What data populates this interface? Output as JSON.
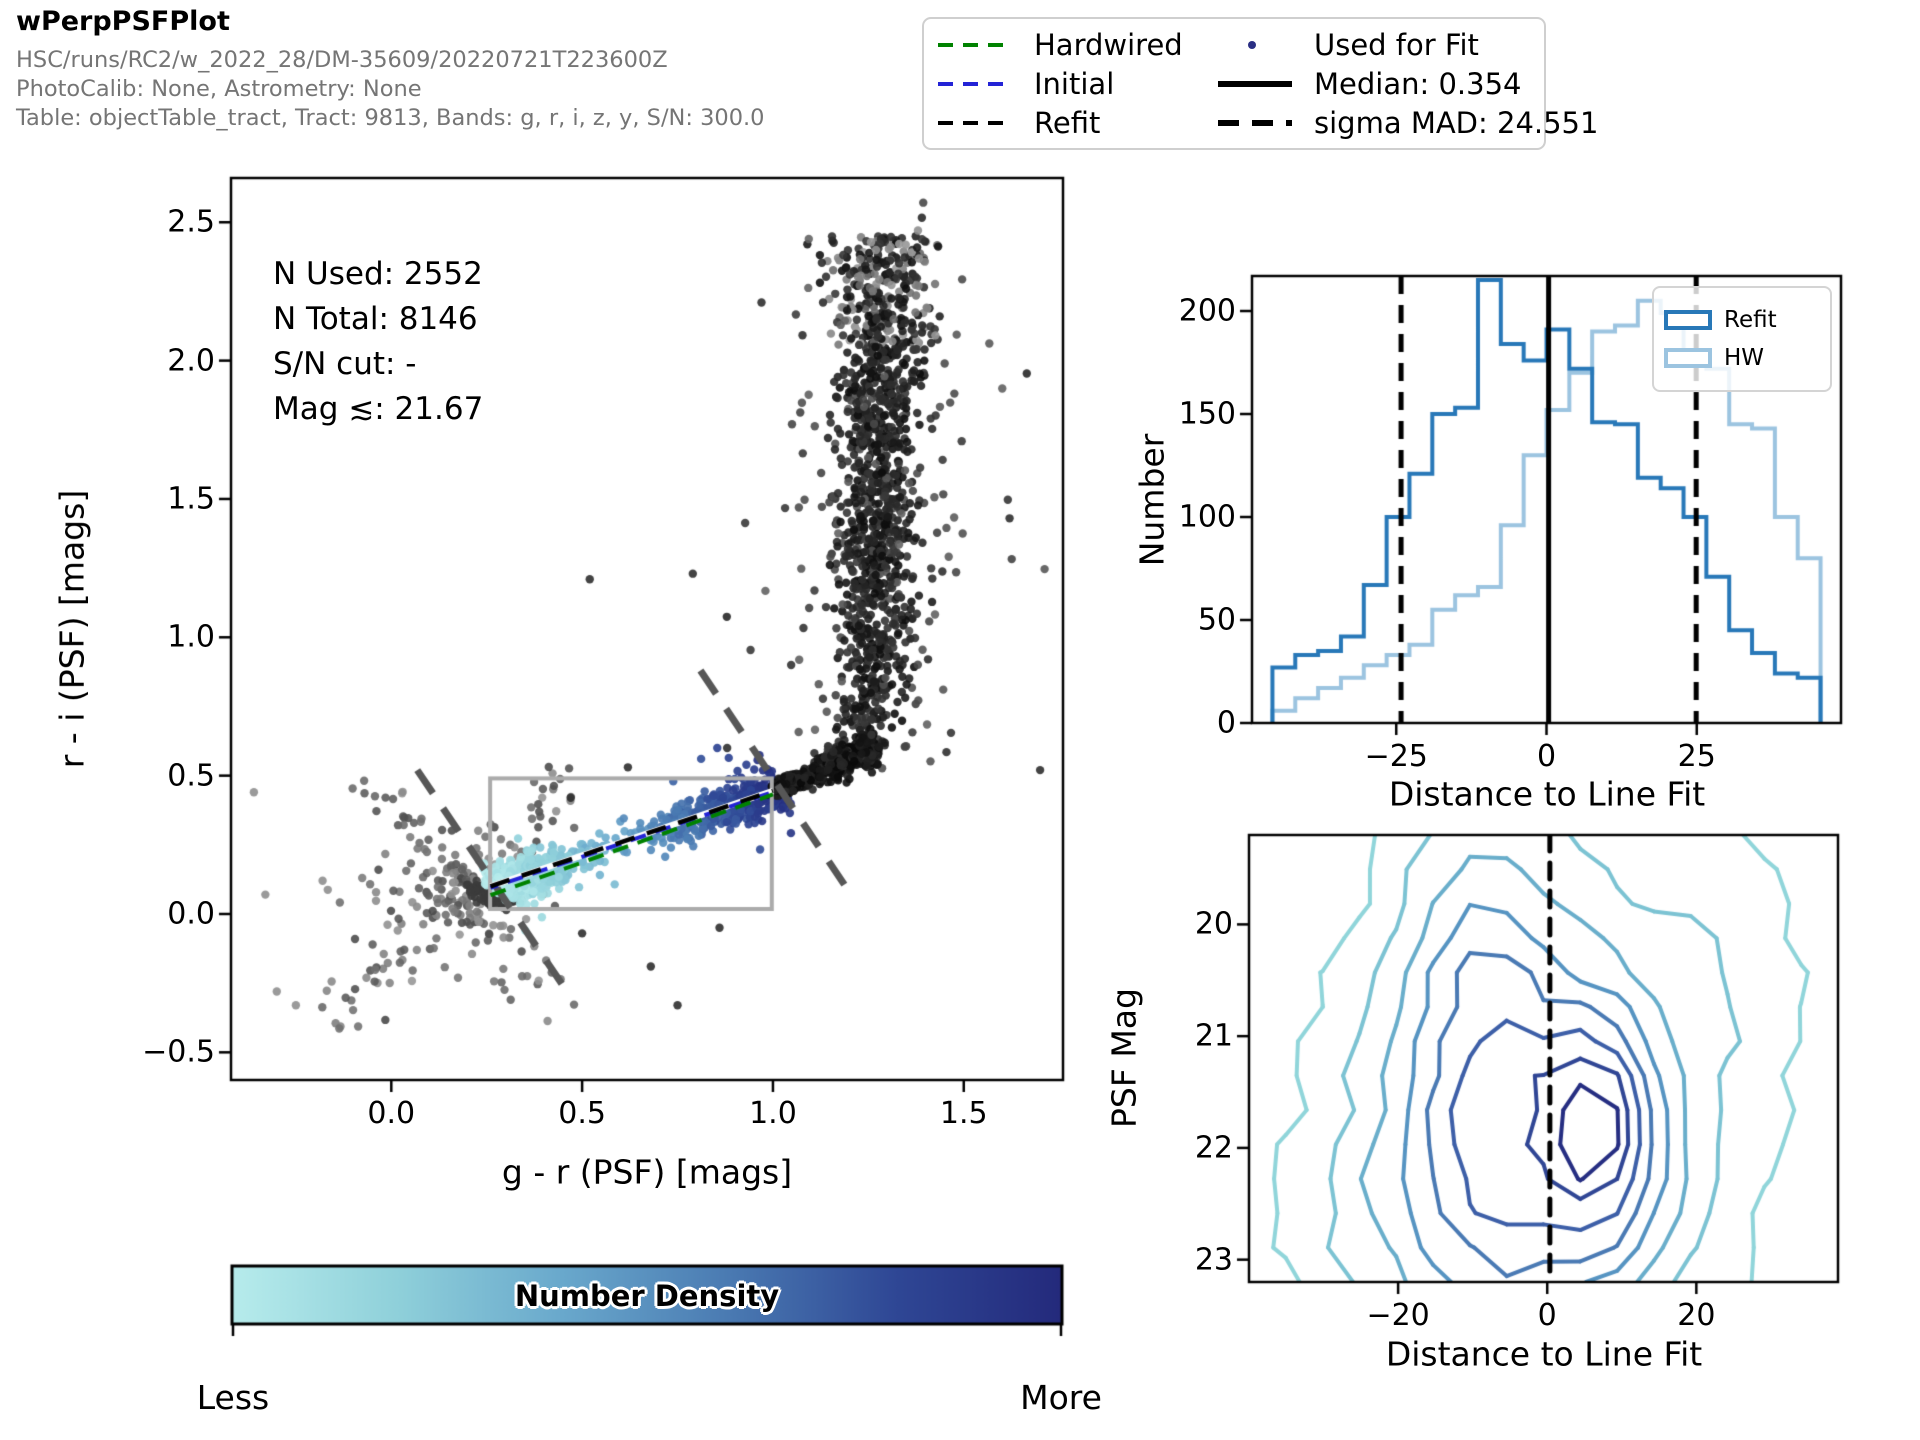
{
  "header": {
    "title": "wPerpPSFPlot",
    "line1": "HSC/runs/RC2/w_2022_28/DM-35609/20220721T223600Z",
    "line2": "PhotoCalib: None, Astrometry: None",
    "line3": "Table: objectTable_tract, Tract: 9813, Bands: g, r, i, z, y, S/N: 300.0"
  },
  "fit_legend": {
    "items": [
      {
        "label": "Hardwired",
        "swatch": "dash-green",
        "color": "#008200"
      },
      {
        "label": "Initial",
        "swatch": "dash-blue",
        "color": "#2323d6"
      },
      {
        "label": "Refit",
        "swatch": "dash-black",
        "color": "#000000"
      },
      {
        "label": "Used for Fit",
        "swatch": "dot-navy",
        "color": "#2a2f84"
      },
      {
        "label": "Median: 0.354",
        "swatch": "solid-black",
        "color": "#000000"
      },
      {
        "label": "sigma MAD: 24.551",
        "swatch": "thick-dash",
        "color": "#000000"
      }
    ]
  },
  "colorbar": {
    "label": "Number Density",
    "less_label": "Less",
    "more_label": "More",
    "stops": [
      "#b7ecec",
      "#8fd0da",
      "#69a8cc",
      "#4a7ab2",
      "#2f4795",
      "#242a7c"
    ]
  },
  "chart_data": [
    {
      "type": "scatter",
      "name": "color-color-diagram",
      "xlabel": "g - r (PSF) [mags]",
      "ylabel": "r - i (PSF) [mags]",
      "xlim": [
        -0.42,
        1.76
      ],
      "ylim": [
        -0.6,
        2.66
      ],
      "xticks": [
        0.0,
        0.5,
        1.0,
        1.5
      ],
      "xtick_labels": [
        "0.0",
        "0.5",
        "1.0",
        "1.5"
      ],
      "yticks": [
        -0.5,
        0.0,
        0.5,
        1.0,
        1.5,
        2.0,
        2.5
      ],
      "ytick_labels": [
        "−0.5",
        "0.0",
        "0.5",
        "1.0",
        "1.5",
        "2.0",
        "2.5"
      ],
      "annotations": [
        "N Used: 2552",
        "N Total: 8146",
        "S/N cut: -",
        "Mag ≲: 21.67"
      ],
      "stats": {
        "n_used": 2552,
        "n_total": 8146,
        "sn_cut": "-",
        "mag_limit": 21.67
      },
      "fit_box": {
        "x0": 0.259,
        "x1": 0.997,
        "y0": 0.018,
        "y1": 0.49
      },
      "fit_lines": {
        "white_under": {
          "color": "#ffffff",
          "p0": [
            0.26,
            0.1
          ],
          "p1": [
            1.0,
            0.445
          ]
        },
        "initial": {
          "color": "#2323d6",
          "p0": [
            0.26,
            0.094
          ],
          "p1": [
            1.0,
            0.441
          ]
        },
        "refit": {
          "color": "#000000",
          "p0": [
            0.26,
            0.1
          ],
          "p1": [
            1.0,
            0.445
          ]
        },
        "hardwired": {
          "color": "#008200",
          "p0": [
            0.26,
            0.068
          ],
          "p1": [
            1.0,
            0.432
          ]
        }
      },
      "perp_lines": [
        {
          "p0": [
            0.068,
            0.52
          ],
          "p1": [
            0.47,
            -0.3
          ]
        },
        {
          "p0": [
            0.81,
            0.88
          ],
          "p1": [
            1.19,
            0.1
          ]
        }
      ],
      "point_groups": [
        {
          "name": "background-cloud",
          "type": "cross",
          "n": 250,
          "center": [
            0.17,
            0.07
          ],
          "arm1": {
            "dx": 0.3,
            "dy": 0.44,
            "sx": 0.05,
            "sy": 0.04
          },
          "arm2": {
            "dx": 0.24,
            "dy": -0.42,
            "sx": 0.05,
            "sy": 0.05
          },
          "blob": [
            0.13,
            0.12
          ],
          "gray_range": [
            70,
            150
          ]
        },
        {
          "name": "knee-clump",
          "type": "gauss",
          "n": 150,
          "center": [
            0.27,
            0.078
          ],
          "sigma": [
            0.032,
            0.026
          ],
          "color": "#3c3c3c"
        },
        {
          "name": "fit-locus",
          "type": "locus",
          "n": 980,
          "p0": [
            0.26,
            0.095
          ],
          "p1": [
            1.0,
            0.445
          ],
          "perp_sigma": 0.03,
          "tail_frac": 0.1,
          "tail_sigma": 0.085
        },
        {
          "name": "upper-branch",
          "type": "branch",
          "n": 1800,
          "x_center": 1.27,
          "y_range": [
            0.5,
            2.45
          ],
          "merge_p0": [
            1.0,
            0.45
          ],
          "merge_p1": [
            1.27,
            0.6
          ]
        },
        {
          "name": "outliers-dark",
          "type": "fixed",
          "color": "#2f2f2f",
          "points": [
            [
              0.5,
              -0.07
            ],
            [
              0.68,
              -0.19
            ],
            [
              0.86,
              -0.05
            ],
            [
              0.75,
              -0.33
            ],
            [
              0.62,
              0.53
            ],
            [
              0.88,
              0.6
            ],
            [
              0.47,
              0.42
            ],
            [
              0.79,
              1.23
            ],
            [
              0.52,
              1.21
            ],
            [
              1.62,
              1.43
            ],
            [
              1.7,
              0.52
            ],
            [
              0.97,
              2.21
            ]
          ]
        },
        {
          "name": "outliers-gray",
          "type": "fixed",
          "color": "#8f8f8f",
          "points": [
            [
              -0.36,
              0.44
            ],
            [
              -0.3,
              -0.28
            ],
            [
              -0.25,
              -0.33
            ],
            [
              1.38,
              2.47
            ],
            [
              1.27,
              2.4
            ],
            [
              -0.18,
              0.12
            ],
            [
              -0.33,
              0.07
            ]
          ]
        }
      ]
    },
    {
      "type": "histogram-step",
      "name": "distance-histogram",
      "xlabel": "Distance to Line Fit",
      "ylabel": "Number",
      "xlim": [
        -49,
        49
      ],
      "ylim": [
        0,
        217
      ],
      "xticks": [
        -25,
        0,
        25
      ],
      "xtick_labels": [
        "−25",
        "0",
        "25"
      ],
      "yticks": [
        0,
        50,
        100,
        150,
        200
      ],
      "ytick_labels": [
        "0",
        "50",
        "100",
        "150",
        "200"
      ],
      "bin_start": -45.6,
      "bin_width": 3.8,
      "series": [
        {
          "name": "Refit",
          "color": "#2878b8",
          "values": [
            27,
            33,
            35,
            42,
            67,
            100,
            121,
            150,
            153,
            215,
            184,
            176,
            191,
            172,
            146,
            145,
            119,
            114,
            100,
            71,
            45,
            34,
            24,
            22
          ]
        },
        {
          "name": "HW",
          "color": "#9cc4e0",
          "values": [
            6,
            12,
            17,
            22,
            28,
            33,
            38,
            55,
            62,
            66,
            96,
            130,
            152,
            170,
            190,
            193,
            205,
            199,
            180,
            172,
            145,
            143,
            100,
            80
          ]
        }
      ],
      "median": 0.354,
      "sigma_mad": 24.551
    },
    {
      "type": "contour",
      "name": "distance-vs-mag-contours",
      "xlabel": "Distance to Line Fit",
      "ylabel": "PSF Mag",
      "xlim": [
        -40,
        39
      ],
      "ylim": [
        19.2,
        23.2
      ],
      "y_inverted": true,
      "xticks": [
        -20,
        0,
        20
      ],
      "xtick_labels": [
        "−20",
        "0",
        "20"
      ],
      "yticks": [
        20,
        21,
        22,
        23
      ],
      "ytick_labels": [
        "20",
        "21",
        "22",
        "23"
      ],
      "vline": 0.354,
      "grid": {
        "nx": 17,
        "ny": 14,
        "noise": 0.055,
        "seed": 7
      },
      "gaussians": [
        [
          0.55,
          -2,
          22.3,
          16,
          1.1
        ],
        [
          0.45,
          -6,
          21.6,
          9,
          1.6
        ],
        [
          0.3,
          -10,
          20.1,
          8,
          1.1
        ],
        [
          0.42,
          8,
          22.05,
          5,
          0.8
        ],
        [
          0.38,
          7,
          21.55,
          4,
          0.5
        ],
        [
          0.3,
          0,
          21.2,
          22,
          2.2
        ],
        [
          0.2,
          22,
          20.2,
          10,
          1.3
        ],
        [
          0.16,
          -26,
          22.8,
          9,
          1.1
        ]
      ],
      "levels": [
        0.22,
        0.4,
        0.58,
        0.76,
        0.94,
        1.12,
        1.3,
        1.45
      ],
      "level_colors": [
        "#90d5da",
        "#7cc3d3",
        "#69aecb",
        "#5694c2",
        "#4a7ab4",
        "#3d5fa8",
        "#304695",
        "#262e82"
      ]
    }
  ]
}
